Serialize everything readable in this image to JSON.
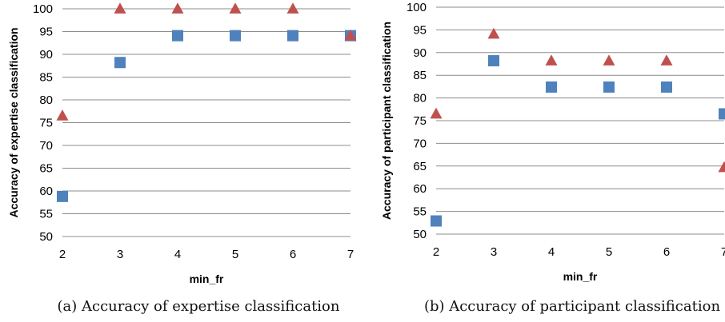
{
  "chart_data": [
    {
      "type": "scatter",
      "caption": "(a) Accuracy of expertise classification",
      "xlabel": "min_fr",
      "ylabel": "Accuracy of expertise classification",
      "x": [
        2,
        3,
        4,
        5,
        6,
        7
      ],
      "xlim": [
        2,
        7
      ],
      "ylim": [
        50,
        100
      ],
      "yticks": [
        50,
        55,
        60,
        65,
        70,
        75,
        80,
        85,
        90,
        95,
        100
      ],
      "grid": "horizontal",
      "series": [
        {
          "marker": "square",
          "color": "#4F81BD",
          "values": [
            58.8,
            88.2,
            94.1,
            94.1,
            94.1,
            94.1
          ]
        },
        {
          "marker": "triangle",
          "color": "#C0504D",
          "values": [
            76.5,
            100,
            100,
            100,
            100,
            94.1
          ]
        }
      ]
    },
    {
      "type": "scatter",
      "caption": "(b) Accuracy of participant classification",
      "xlabel": "min_fr",
      "ylabel": "Accuracy of participant classification",
      "x": [
        2,
        3,
        4,
        5,
        6,
        7
      ],
      "xlim": [
        2,
        7
      ],
      "ylim": [
        50,
        100
      ],
      "yticks": [
        50,
        55,
        60,
        65,
        70,
        75,
        80,
        85,
        90,
        95,
        100
      ],
      "grid": "horizontal",
      "series": [
        {
          "marker": "square",
          "color": "#4F81BD",
          "values": [
            52.9,
            88.2,
            82.4,
            82.4,
            82.4,
            76.5
          ]
        },
        {
          "marker": "triangle",
          "color": "#C0504D",
          "values": [
            76.5,
            94.1,
            88.2,
            88.2,
            88.2,
            64.7
          ]
        }
      ]
    }
  ]
}
